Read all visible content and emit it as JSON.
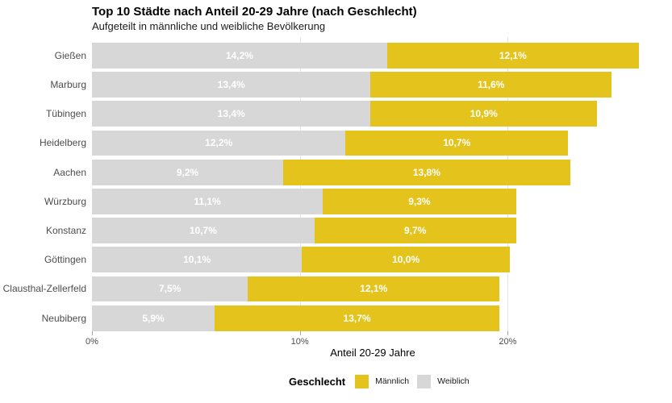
{
  "chart_data": {
    "type": "bar",
    "orientation": "horizontal-stacked",
    "title": "Top 10 Städte nach Anteil 20-29 Jahre (nach Geschlecht)",
    "subtitle": "Aufgeteilt in männliche und weibliche Bevölkerung",
    "xlabel": "Anteil 20-29 Jahre",
    "categories": [
      "Gießen",
      "Marburg",
      "Tübingen",
      "Heidelberg",
      "Aachen",
      "Würzburg",
      "Konstanz",
      "Göttingen",
      "Clausthal-Zellerfeld",
      "Neubiberg"
    ],
    "series": [
      {
        "name": "Weiblich",
        "key": "weiblich",
        "color": "#d7d7d7",
        "values": [
          14.2,
          13.4,
          13.4,
          12.2,
          9.2,
          11.1,
          10.7,
          10.1,
          7.5,
          5.9
        ],
        "labels": [
          "14,2%",
          "13,4%",
          "13,4%",
          "12,2%",
          "9,2%",
          "11,1%",
          "10,7%",
          "10,1%",
          "7,5%",
          "5,9%"
        ]
      },
      {
        "name": "Männlich",
        "key": "maennlich",
        "color": "#e4c41c",
        "values": [
          12.1,
          11.6,
          10.9,
          10.7,
          13.8,
          9.3,
          9.7,
          10.0,
          12.1,
          13.7
        ],
        "labels": [
          "12,1%",
          "11,6%",
          "10,9%",
          "10,7%",
          "13,8%",
          "9,3%",
          "9,7%",
          "10,0%",
          "12,1%",
          "13,7%"
        ]
      }
    ],
    "x_ticks": [
      {
        "value": 0,
        "label": "0%"
      },
      {
        "value": 10,
        "label": "10%"
      },
      {
        "value": 20,
        "label": "20%"
      }
    ],
    "xlim": [
      0,
      27
    ],
    "grid": "vertical-major",
    "bar_label_color": "#ffffff",
    "legend": {
      "title": "Geschlecht",
      "position": "bottom",
      "entries": [
        {
          "label": "Männlich",
          "color": "#e4c41c"
        },
        {
          "label": "Weiblich",
          "color": "#d7d7d7"
        }
      ]
    }
  }
}
